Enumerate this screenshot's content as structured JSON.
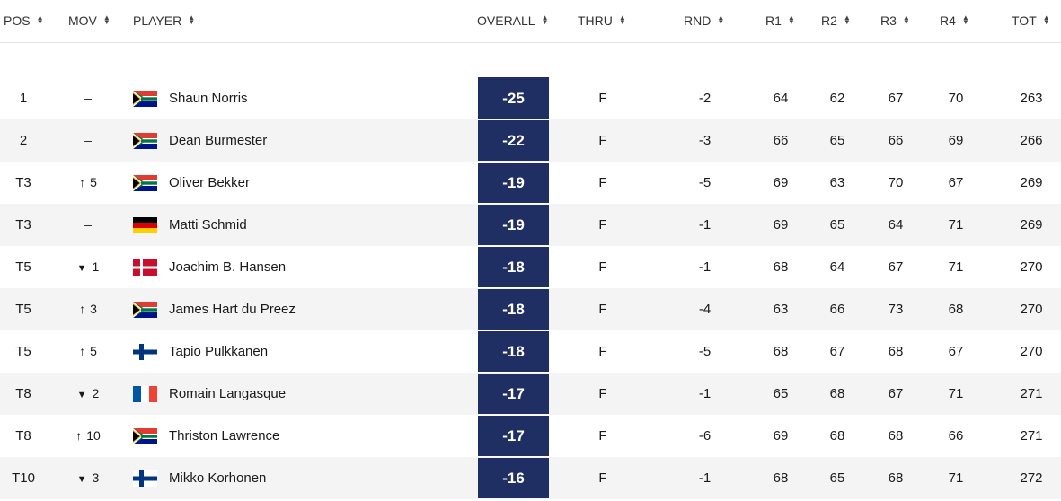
{
  "header": {
    "pos": "POS",
    "mov": "MOV",
    "player": "PLAYER",
    "overall": "OVERALL",
    "thru": "THRU",
    "rnd": "RND",
    "r1": "R1",
    "r2": "R2",
    "r3": "R3",
    "r4": "R4",
    "tot": "TOT"
  },
  "rows": [
    {
      "pos": "1",
      "mov_dir": "none",
      "mov": "–",
      "flag": "south-africa",
      "name": "Shaun Norris",
      "overall": "-25",
      "thru": "F",
      "rnd": "-2",
      "r1": "64",
      "r2": "62",
      "r3": "67",
      "r4": "70",
      "tot": "263"
    },
    {
      "pos": "2",
      "mov_dir": "none",
      "mov": "–",
      "flag": "south-africa",
      "name": "Dean Burmester",
      "overall": "-22",
      "thru": "F",
      "rnd": "-3",
      "r1": "66",
      "r2": "65",
      "r3": "66",
      "r4": "69",
      "tot": "266"
    },
    {
      "pos": "T3",
      "mov_dir": "up",
      "mov": "5",
      "flag": "south-africa",
      "name": "Oliver Bekker",
      "overall": "-19",
      "thru": "F",
      "rnd": "-5",
      "r1": "69",
      "r2": "63",
      "r3": "70",
      "r4": "67",
      "tot": "269"
    },
    {
      "pos": "T3",
      "mov_dir": "none",
      "mov": "–",
      "flag": "germany",
      "name": "Matti Schmid",
      "overall": "-19",
      "thru": "F",
      "rnd": "-1",
      "r1": "69",
      "r2": "65",
      "r3": "64",
      "r4": "71",
      "tot": "269"
    },
    {
      "pos": "T5",
      "mov_dir": "down",
      "mov": "1",
      "flag": "denmark",
      "name": "Joachim B. Hansen",
      "overall": "-18",
      "thru": "F",
      "rnd": "-1",
      "r1": "68",
      "r2": "64",
      "r3": "67",
      "r4": "71",
      "tot": "270"
    },
    {
      "pos": "T5",
      "mov_dir": "up",
      "mov": "3",
      "flag": "south-africa",
      "name": "James Hart du Preez",
      "overall": "-18",
      "thru": "F",
      "rnd": "-4",
      "r1": "63",
      "r2": "66",
      "r3": "73",
      "r4": "68",
      "tot": "270"
    },
    {
      "pos": "T5",
      "mov_dir": "up",
      "mov": "5",
      "flag": "finland",
      "name": "Tapio Pulkkanen",
      "overall": "-18",
      "thru": "F",
      "rnd": "-5",
      "r1": "68",
      "r2": "67",
      "r3": "68",
      "r4": "67",
      "tot": "270"
    },
    {
      "pos": "T8",
      "mov_dir": "down",
      "mov": "2",
      "flag": "france",
      "name": "Romain Langasque",
      "overall": "-17",
      "thru": "F",
      "rnd": "-1",
      "r1": "65",
      "r2": "68",
      "r3": "67",
      "r4": "71",
      "tot": "271"
    },
    {
      "pos": "T8",
      "mov_dir": "up",
      "mov": "10",
      "flag": "south-africa",
      "name": "Thriston Lawrence",
      "overall": "-17",
      "thru": "F",
      "rnd": "-6",
      "r1": "69",
      "r2": "68",
      "r3": "68",
      "r4": "66",
      "tot": "271"
    },
    {
      "pos": "T10",
      "mov_dir": "down",
      "mov": "3",
      "flag": "finland",
      "name": "Mikko Korhonen",
      "overall": "-16",
      "thru": "F",
      "rnd": "-1",
      "r1": "68",
      "r2": "65",
      "r3": "68",
      "r4": "71",
      "tot": "272"
    }
  ],
  "colors": {
    "overall_bg": "#1f2f63",
    "alt_row": "#f4f4f4"
  }
}
